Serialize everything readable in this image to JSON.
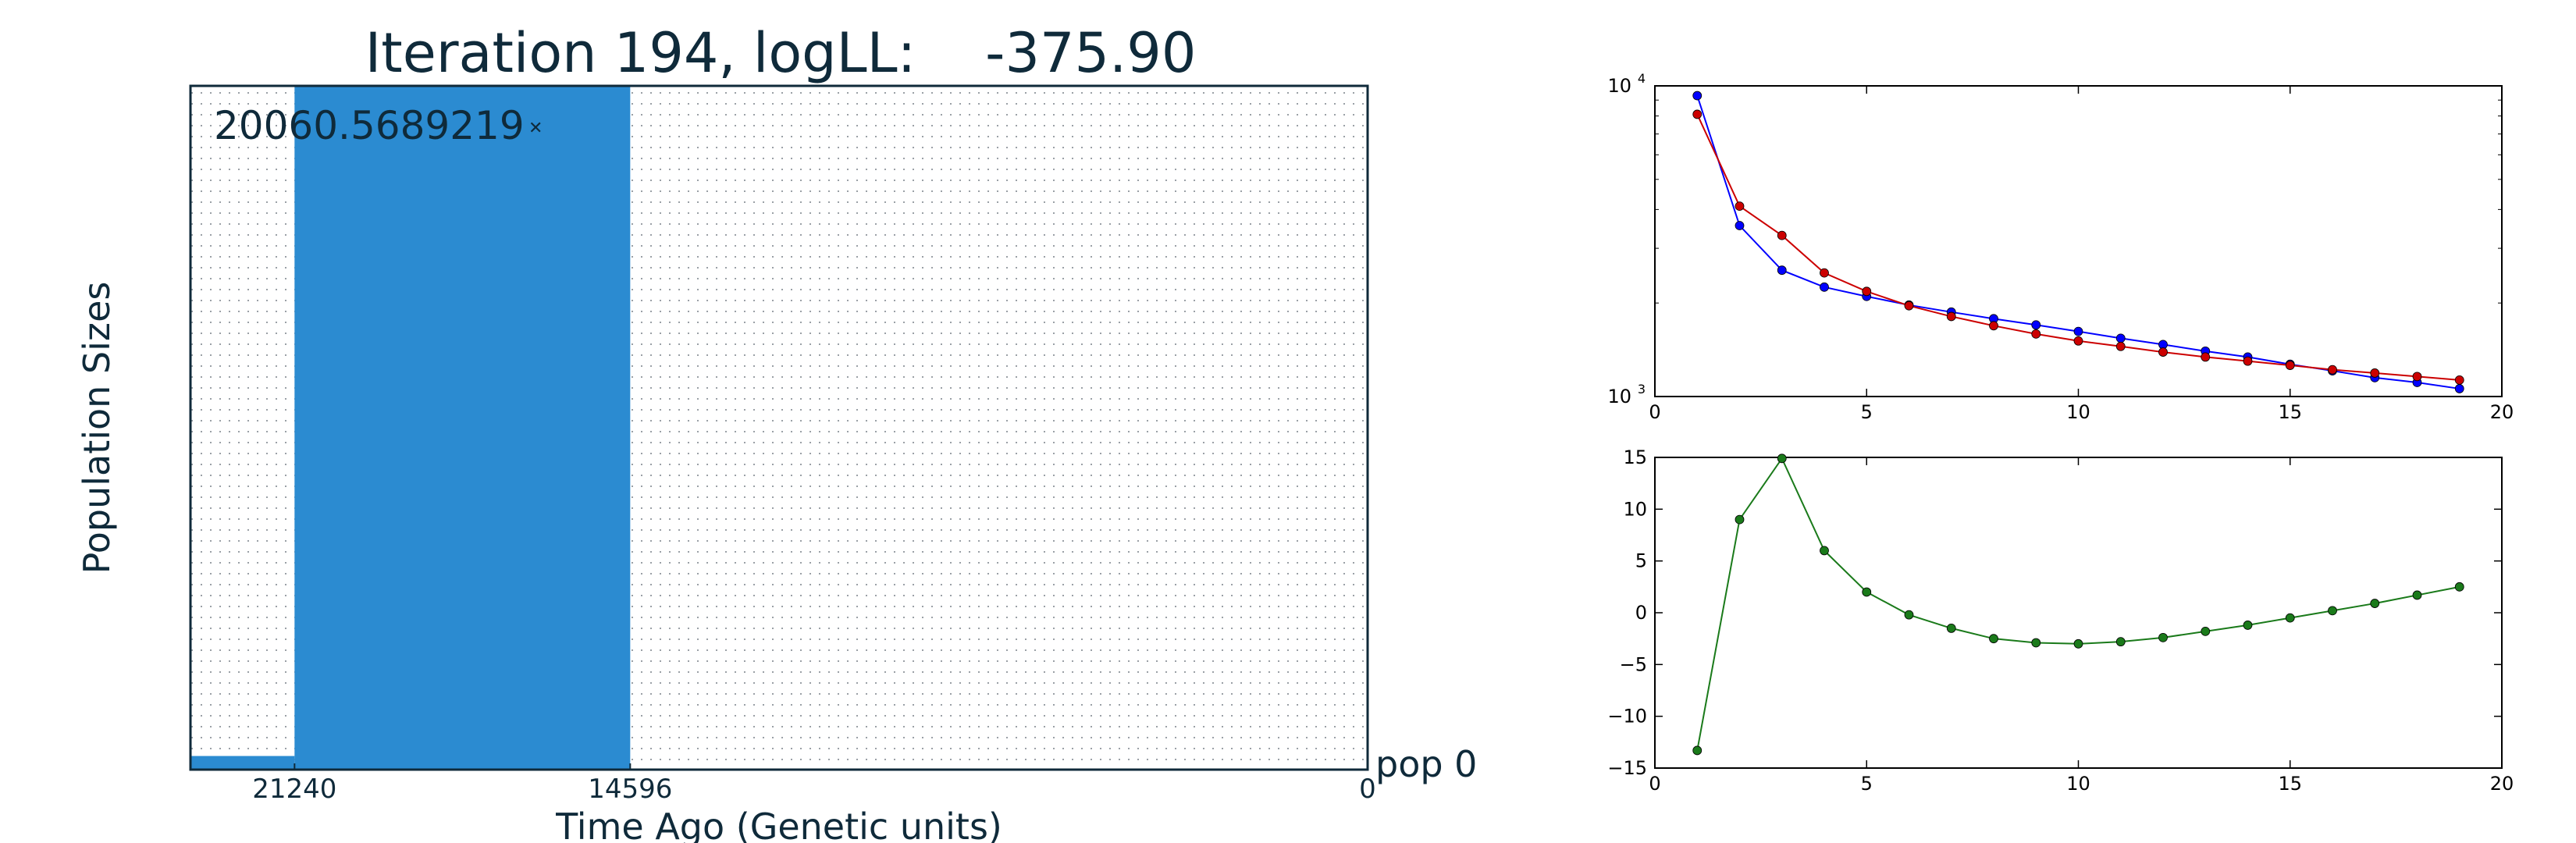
{
  "left_panel": {
    "title": "Iteration 194, logLL:    -375.90",
    "annotation": "20060.5689219",
    "ylabel": "Population Sizes",
    "xlabel": "Time Ago (Genetic units)",
    "pop_label": "pop 0",
    "x_ticks": [
      "21240",
      "14596",
      "0"
    ],
    "fill_color": "#2b8bd1",
    "frame_color": "#0f2a3a"
  },
  "chart_data": [
    {
      "type": "area",
      "title": "Iteration 194, logLL:    -375.90",
      "xlabel": "Time Ago (Genetic units)",
      "ylabel": "Population Sizes",
      "x_ticks": [
        21240,
        14596,
        0
      ],
      "xlim": [
        23300,
        0
      ],
      "ylim": [
        0,
        20060.5689219
      ],
      "annotation": "20060.5689219",
      "series": [
        {
          "name": "pop 0",
          "epochs": [
            {
              "x_start": 23300,
              "x_end": 21240,
              "size": 400
            },
            {
              "x_start": 21240,
              "x_end": 14596,
              "size": 20060.5689219
            },
            {
              "x_start": 14596,
              "x_end": 0,
              "size": 0
            }
          ]
        }
      ],
      "color": "#2b8bd1"
    },
    {
      "type": "line",
      "xlim": [
        0,
        20
      ],
      "ylim": [
        1000,
        10000
      ],
      "y_scale": "log",
      "x_ticks": [
        0,
        5,
        10,
        15,
        20
      ],
      "y_ticks": [
        "10^3",
        "10^4"
      ],
      "grid": false,
      "series": [
        {
          "color": "#0000ff",
          "x": [
            1,
            2,
            3,
            4,
            5,
            6,
            7,
            8,
            9,
            10,
            11,
            12,
            13,
            14,
            15,
            16,
            17,
            18,
            19
          ],
          "y": [
            9300,
            3550,
            2550,
            2250,
            2100,
            1970,
            1870,
            1780,
            1700,
            1620,
            1540,
            1470,
            1400,
            1340,
            1270,
            1210,
            1150,
            1110,
            1060
          ]
        },
        {
          "color": "#cc0000",
          "x": [
            1,
            2,
            3,
            4,
            5,
            6,
            7,
            8,
            9,
            10,
            11,
            12,
            13,
            14,
            15,
            16,
            17,
            18,
            19
          ],
          "y": [
            8100,
            4100,
            3300,
            2500,
            2180,
            1960,
            1810,
            1690,
            1590,
            1510,
            1450,
            1390,
            1340,
            1300,
            1260,
            1220,
            1190,
            1160,
            1130
          ]
        }
      ]
    },
    {
      "type": "line",
      "xlim": [
        0,
        20
      ],
      "ylim": [
        -15,
        15
      ],
      "x_ticks": [
        0,
        5,
        10,
        15,
        20
      ],
      "y_ticks": [
        15,
        10,
        5,
        0,
        -5,
        -10,
        -15
      ],
      "grid": false,
      "series": [
        {
          "color": "#1a7a1a",
          "x": [
            1,
            2,
            3,
            4,
            5,
            6,
            7,
            8,
            9,
            10,
            11,
            12,
            13,
            14,
            15,
            16,
            17,
            18,
            19
          ],
          "y": [
            -13.3,
            9.0,
            14.9,
            6.0,
            2.0,
            -0.2,
            -1.5,
            -2.5,
            -2.9,
            -3.0,
            -2.8,
            -2.4,
            -1.8,
            -1.2,
            -0.5,
            0.2,
            0.9,
            1.7,
            2.5
          ]
        }
      ]
    }
  ]
}
